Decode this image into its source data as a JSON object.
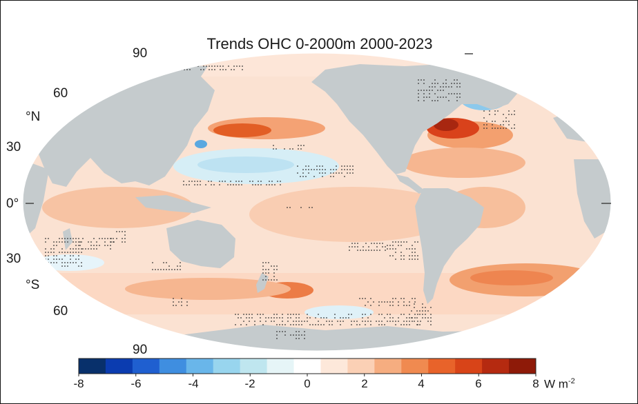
{
  "title": "Trends OHC 0-2000m 2000-2023",
  "lat_labels": {
    "n90": "90",
    "n60": "60",
    "n_unit": "°N",
    "n30": "30",
    "eq": "0°",
    "s30": "30",
    "s_unit": "°S",
    "s60": "60",
    "s90": "90"
  },
  "colorbar": {
    "ticks": [
      "-8",
      "-6",
      "-4",
      "-2",
      "0",
      "2",
      "4",
      "6",
      "8"
    ],
    "units_base": "W m",
    "units_exp": "-2",
    "colors": [
      "#08306b",
      "#0b3cb0",
      "#1f5fd0",
      "#3f8ee0",
      "#69b6ea",
      "#98d5ee",
      "#bfe6ef",
      "#e6f5f7",
      "#ffffff",
      "#fde8da",
      "#fbd0b5",
      "#f6ad80",
      "#f08a50",
      "#e8632a",
      "#d84418",
      "#b52a10",
      "#8e1a08"
    ]
  },
  "legend_colors": {
    "land": "#c5cbcd",
    "ocean_base": "#fbe2d2",
    "border": "#111111"
  }
}
